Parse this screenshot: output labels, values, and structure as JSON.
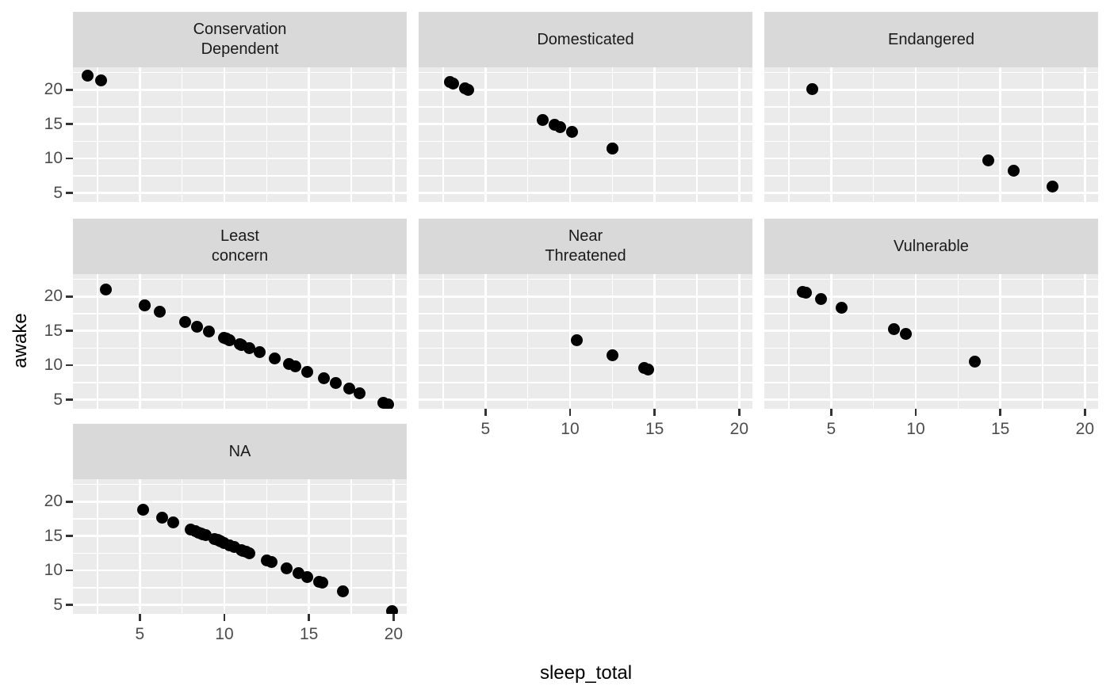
{
  "chart_data": {
    "type": "scatter",
    "title": "",
    "xlabel": "sleep_total",
    "ylabel": "awake",
    "facet_by": "conservation",
    "x_ticks": [
      5,
      10,
      15,
      20
    ],
    "y_ticks": [
      5,
      10,
      15,
      20
    ],
    "x_minor_gridlines": [
      2.5,
      7.5,
      12.5,
      17.5
    ],
    "y_minor_gridlines": [
      7.5,
      12.5,
      17.5,
      22.5
    ],
    "xlim": [
      1.05,
      20.78
    ],
    "ylim": [
      3.7,
      23.25
    ],
    "grid": "white major+minor on grey panel",
    "legend": "none",
    "point_color": "#000000",
    "colors": {
      "panel_bg": "#EBEBEB",
      "strip_bg": "#D9D9D9",
      "gridline": "#FFFFFF",
      "point": "#000000",
      "tick_mark": "#333333",
      "tick_label": "#4D4D4D",
      "strip_text": "#1A1A1A",
      "axis_title": "#000000",
      "figure_bg": "#FFFFFF"
    },
    "facets": [
      {
        "label": "Conservation Dependent",
        "label_lines": [
          "Conservation",
          "Dependent"
        ],
        "points": [
          [
            1.9,
            22.1
          ],
          [
            2.7,
            21.35
          ]
        ]
      },
      {
        "label": "Domesticated",
        "label_lines": [
          "Domesticated"
        ],
        "points": [
          [
            2.9,
            21.1
          ],
          [
            3.1,
            20.9
          ],
          [
            3.8,
            20.2
          ],
          [
            4.0,
            20.0
          ],
          [
            8.4,
            15.6
          ],
          [
            9.1,
            14.9
          ],
          [
            9.4,
            14.6
          ],
          [
            10.1,
            13.9
          ],
          [
            12.5,
            11.5
          ],
          [
            12.5,
            11.5
          ]
        ]
      },
      {
        "label": "Endangered",
        "label_lines": [
          "Endangered"
        ],
        "points": [
          [
            3.9,
            20.1
          ],
          [
            14.3,
            9.7
          ],
          [
            15.8,
            8.2
          ],
          [
            18.1,
            5.9
          ]
        ]
      },
      {
        "label": "Least concern",
        "label_lines": [
          "Least",
          "concern"
        ],
        "points": [
          [
            3.0,
            21.0
          ],
          [
            5.3,
            18.7
          ],
          [
            5.3,
            18.7
          ],
          [
            6.2,
            17.8
          ],
          [
            7.7,
            16.3
          ],
          [
            8.4,
            15.6
          ],
          [
            9.1,
            14.9
          ],
          [
            10.0,
            14.0
          ],
          [
            10.1,
            13.9
          ],
          [
            10.1,
            13.9
          ],
          [
            10.3,
            13.7
          ],
          [
            10.3,
            13.7
          ],
          [
            10.9,
            13.1
          ],
          [
            11.0,
            13.0
          ],
          [
            11.0,
            13.0
          ],
          [
            11.5,
            12.5
          ],
          [
            12.1,
            11.9
          ],
          [
            13.0,
            11.0
          ],
          [
            13.8,
            10.2
          ],
          [
            14.2,
            9.8
          ],
          [
            14.9,
            9.1
          ],
          [
            15.9,
            8.1
          ],
          [
            16.6,
            7.4
          ],
          [
            17.4,
            6.6
          ],
          [
            18.0,
            6.0
          ],
          [
            19.4,
            4.6
          ],
          [
            19.7,
            4.3
          ]
        ]
      },
      {
        "label": "Near Threatened",
        "label_lines": [
          "Near",
          "Threatened"
        ],
        "points": [
          [
            10.4,
            13.6
          ],
          [
            12.5,
            11.5
          ],
          [
            14.4,
            9.6
          ],
          [
            14.6,
            9.4
          ]
        ]
      },
      {
        "label": "Vulnerable",
        "label_lines": [
          "Vulnerable"
        ],
        "points": [
          [
            3.3,
            20.7
          ],
          [
            3.5,
            20.5
          ],
          [
            4.4,
            19.6
          ],
          [
            5.6,
            18.4
          ],
          [
            8.7,
            15.3
          ],
          [
            9.4,
            14.6
          ],
          [
            13.5,
            10.5
          ]
        ]
      },
      {
        "label": "NA",
        "label_lines": [
          "NA"
        ],
        "points": [
          [
            5.2,
            18.8
          ],
          [
            6.3,
            17.7
          ],
          [
            7.0,
            17.0
          ],
          [
            8.0,
            16.0
          ],
          [
            8.3,
            15.7
          ],
          [
            8.5,
            15.5
          ],
          [
            8.6,
            15.4
          ],
          [
            8.7,
            15.3
          ],
          [
            8.9,
            15.1
          ],
          [
            9.4,
            14.6
          ],
          [
            9.6,
            14.4
          ],
          [
            9.7,
            14.3
          ],
          [
            9.8,
            14.2
          ],
          [
            10.0,
            14.0
          ],
          [
            10.3,
            13.7
          ],
          [
            10.6,
            13.4
          ],
          [
            11.0,
            13.0
          ],
          [
            11.1,
            12.9
          ],
          [
            11.3,
            12.7
          ],
          [
            11.5,
            12.5
          ],
          [
            12.5,
            11.5
          ],
          [
            12.8,
            11.2
          ],
          [
            13.7,
            10.3
          ],
          [
            14.4,
            9.6
          ],
          [
            14.9,
            9.1
          ],
          [
            15.6,
            8.4
          ],
          [
            15.8,
            8.2
          ],
          [
            17.0,
            7.0
          ],
          [
            19.9,
            4.1
          ]
        ]
      }
    ]
  }
}
